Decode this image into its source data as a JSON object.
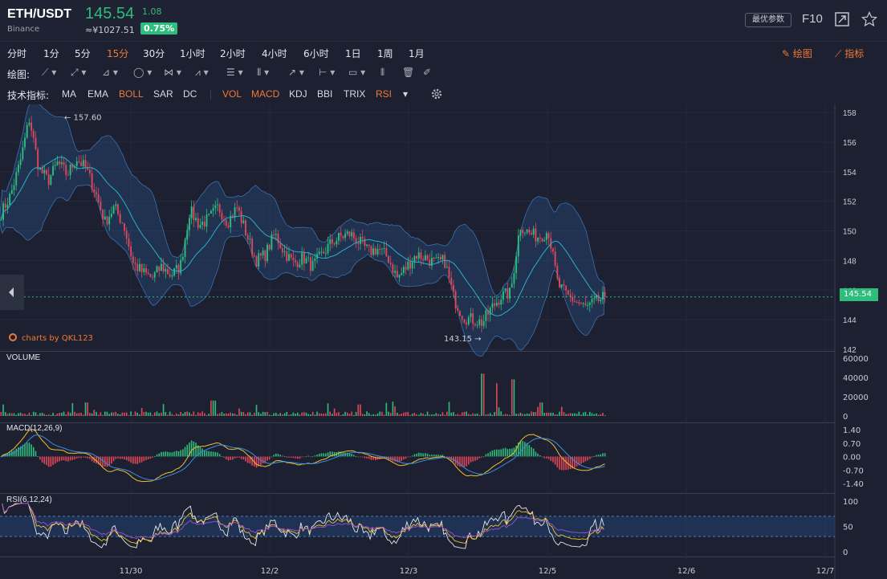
{
  "header": {
    "pair": "ETH/USDT",
    "exchange": "Binance",
    "price": "145.54",
    "change": "1.08",
    "cny": "≈¥1027.51",
    "change_pct": "0.75%",
    "params_button": "最优参数",
    "f10": "F10",
    "expand_icon": "expand-icon",
    "star_icon": "star-icon"
  },
  "periods": [
    "分时",
    "1分",
    "5分",
    "15分",
    "30分",
    "1小时",
    "2小时",
    "4小时",
    "6小时",
    "1日",
    "1周",
    "1月"
  ],
  "active_period": "15分",
  "links": {
    "draw": "绘图",
    "indicators": "指标"
  },
  "tools_label": "绘图:",
  "indicator_label": "技术指标:",
  "main_indicators": [
    {
      "name": "MA",
      "active": false
    },
    {
      "name": "EMA",
      "active": false
    },
    {
      "name": "BOLL",
      "active": true
    },
    {
      "name": "SAR",
      "active": false
    },
    {
      "name": "DC",
      "active": false
    }
  ],
  "sub_indicators": [
    {
      "name": "VOL",
      "active": true
    },
    {
      "name": "MACD",
      "active": true
    },
    {
      "name": "KDJ",
      "active": false
    },
    {
      "name": "BBI",
      "active": false
    },
    {
      "name": "TRIX",
      "active": false
    },
    {
      "name": "RSI",
      "active": true
    }
  ],
  "watermark": "charts by QKL123",
  "colors": {
    "up": "#2ebd7d",
    "down": "#e0475a",
    "accent": "#f07a35",
    "boll_band": "#264a78",
    "boll_mid": "#2ab0c8",
    "background": "#1c2030"
  },
  "chart_data": [
    {
      "type": "candlestick",
      "title": "",
      "indicator": "BOLL",
      "ylim": [
        142,
        158
      ],
      "yticks": [
        158,
        156,
        154,
        152,
        150,
        148,
        146,
        144,
        142
      ],
      "current_price": 145.54,
      "current_price_label": "145.54",
      "max_marker": {
        "value": 157.6,
        "label": "← 157.60"
      },
      "min_marker": {
        "value": 143.15,
        "label": "143.15 →"
      },
      "close_path": [
        [
          "11/28 22:00",
          151.2
        ],
        [
          "11/29 00:00",
          152.4
        ],
        [
          "11/29 02:00",
          154.6
        ],
        [
          "11/29 04:00",
          157.6
        ],
        [
          "11/29 06:00",
          154.2
        ],
        [
          "11/29 08:00",
          153.4
        ],
        [
          "11/29 10:00",
          154.6
        ],
        [
          "11/29 12:00",
          153.8
        ],
        [
          "11/29 14:00",
          154.9
        ],
        [
          "11/29 16:00",
          154.2
        ],
        [
          "11/29 18:00",
          152.6
        ],
        [
          "11/29 20:00",
          150.6
        ],
        [
          "11/29 22:00",
          151.6
        ],
        [
          "11/30 00:00",
          150.4
        ],
        [
          "11/30 02:00",
          147.8
        ],
        [
          "11/30 04:00",
          147.2
        ],
        [
          "11/30 06:00",
          146.8
        ],
        [
          "11/30 08:00",
          147.6
        ],
        [
          "11/30 10:00",
          147.0
        ],
        [
          "11/30 12:00",
          147.6
        ],
        [
          "11/30 14:00",
          151.4
        ],
        [
          "11/30 16:00",
          150.4
        ],
        [
          "11/30 18:00",
          150.8
        ],
        [
          "11/30 20:00",
          151.6
        ],
        [
          "11/30 22:00",
          150.6
        ],
        [
          "12/1 00:00",
          151.6
        ],
        [
          "12/1 02:00",
          149.8
        ],
        [
          "12/1 04:00",
          148.0
        ],
        [
          "12/1 06:00",
          148.4
        ],
        [
          "12/1 08:00",
          149.8
        ],
        [
          "12/1 10:00",
          148.6
        ],
        [
          "12/1 12:00",
          147.8
        ],
        [
          "12/1 14:00",
          148.2
        ],
        [
          "12/1 16:00",
          147.6
        ],
        [
          "12/1 18:00",
          148.4
        ],
        [
          "12/1 20:00",
          149.2
        ],
        [
          "12/1 22:00",
          149.6
        ],
        [
          "12/2 00:00",
          149.8
        ],
        [
          "12/2 02:00",
          149.2
        ],
        [
          "12/2 04:00",
          148.6
        ],
        [
          "12/2 06:00",
          148.8
        ],
        [
          "12/2 08:00",
          148.2
        ],
        [
          "12/2 10:00",
          146.8
        ],
        [
          "12/2 12:00",
          147.6
        ],
        [
          "12/2 14:00",
          148.4
        ],
        [
          "12/2 16:00",
          148.2
        ],
        [
          "12/2 18:00",
          147.8
        ],
        [
          "12/2 20:00",
          148.0
        ],
        [
          "12/2 22:00",
          145.4
        ],
        [
          "12/3 00:00",
          144.2
        ],
        [
          "12/3 02:00",
          144.0
        ],
        [
          "12/3 04:00",
          143.8
        ],
        [
          "12/3 06:00",
          144.8
        ],
        [
          "12/3 08:00",
          145.6
        ],
        [
          "12/3 10:00",
          145.8
        ],
        [
          "12/3 12:00",
          150.4
        ],
        [
          "12/3 14:00",
          149.8
        ],
        [
          "12/3 16:00",
          149.6
        ],
        [
          "12/3 18:00",
          150.0
        ],
        [
          "12/3 20:00",
          146.4
        ],
        [
          "12/3 22:00",
          145.6
        ],
        [
          "12/4 00:00",
          145.2
        ],
        [
          "12/4 02:00",
          144.8
        ],
        [
          "12/4 04:00",
          145.2
        ],
        [
          "12/4 06:00",
          145.54
        ]
      ],
      "xticks": [
        "11/30",
        "12/2",
        "12/3",
        "12/5",
        "12/6",
        "12/7"
      ]
    },
    {
      "type": "bar",
      "title": "VOLUME",
      "ylim": [
        0,
        60000
      ],
      "yticks": [
        "60000",
        "40000",
        "20000",
        "0"
      ],
      "spikes": [
        {
          "at": 0.14,
          "value": 14000
        },
        {
          "at": 0.35,
          "value": 16000
        },
        {
          "at": 0.59,
          "value": 12000
        },
        {
          "at": 0.795,
          "value": 44000
        },
        {
          "at": 0.82,
          "value": 34000
        },
        {
          "at": 0.845,
          "value": 38000
        },
        {
          "at": 0.89,
          "value": 14000
        }
      ]
    },
    {
      "type": "line",
      "title": "MACD(12,26,9)",
      "ylim": [
        -1.4,
        1.4
      ],
      "yticks": [
        "1.40",
        "0.70",
        "0.00",
        "-0.70",
        "-1.40"
      ]
    },
    {
      "type": "line",
      "title": "RSI(6,12,24)",
      "ylim": [
        0,
        100
      ],
      "yticks": [
        "100",
        "50",
        "0"
      ]
    }
  ]
}
